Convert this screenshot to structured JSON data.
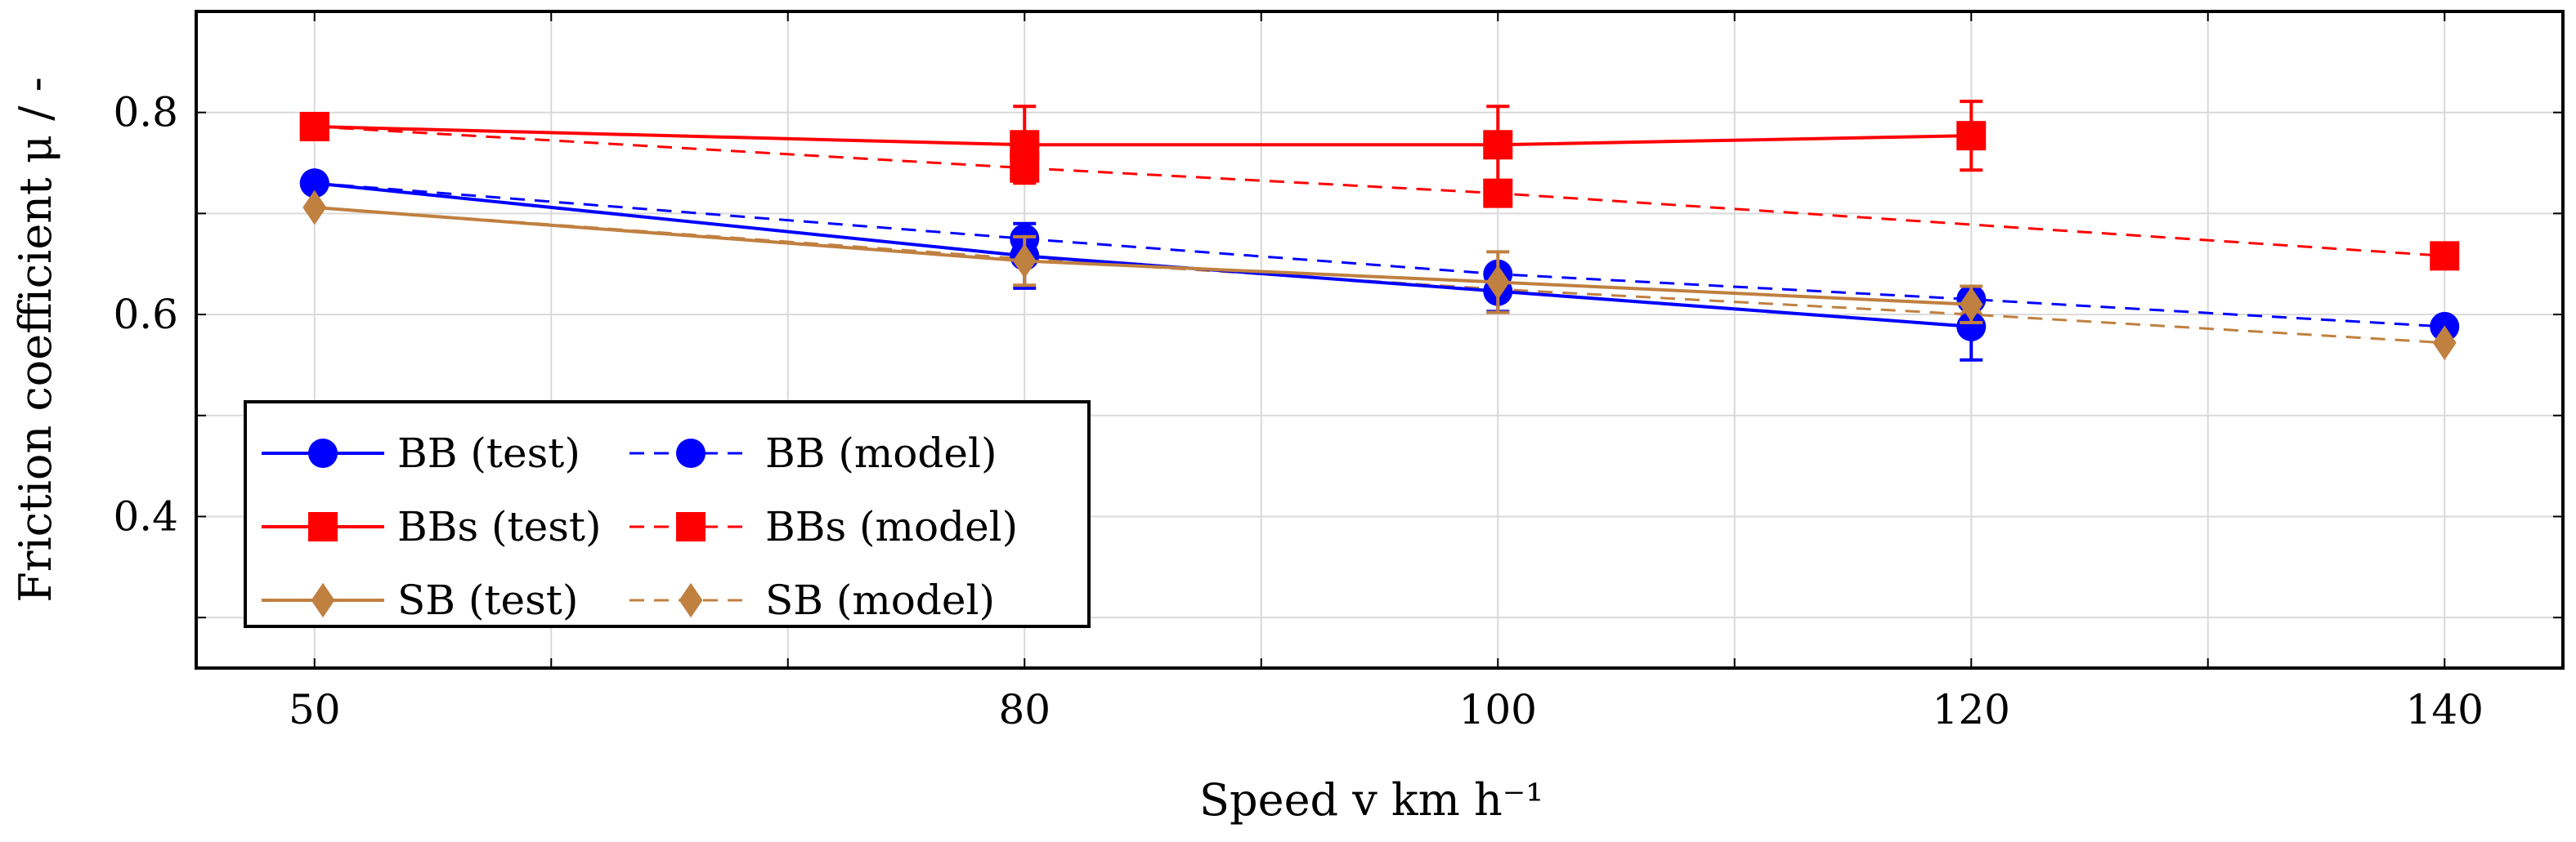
{
  "chart_data": {
    "type": "line",
    "title": "",
    "xlabel": "Speed v km h⁻¹",
    "ylabel": "Friction coefficient μ / -",
    "xlim": [
      45,
      145
    ],
    "ylim": [
      0.25,
      0.9
    ],
    "x_ticks": [
      50,
      80,
      100,
      120,
      140
    ],
    "x_tick_labels": [
      "50",
      "80",
      "100",
      "120",
      "140"
    ],
    "y_ticks": [
      0.4,
      0.6,
      0.8
    ],
    "y_tick_labels": [
      "0.4",
      "0.6",
      "0.8"
    ],
    "grid": true,
    "legend_position": "bottom-left",
    "series": [
      {
        "name": "BB (test)",
        "color": "#0000ff",
        "dash": false,
        "marker": "circle",
        "x": [
          50,
          80,
          100,
          120
        ],
        "y": [
          0.73,
          0.658,
          0.623,
          0.588
        ],
        "error": [
          0,
          0.032,
          0.02,
          0.033
        ]
      },
      {
        "name": "BB (model)",
        "color": "#0000ff",
        "dash": true,
        "marker": "circle",
        "x": [
          50,
          80,
          100,
          120,
          140
        ],
        "y": [
          0.73,
          0.675,
          0.64,
          0.615,
          0.588
        ]
      },
      {
        "name": "BBs (test)",
        "color": "#ff0000",
        "dash": false,
        "marker": "square",
        "x": [
          50,
          80,
          100,
          120
        ],
        "y": [
          0.786,
          0.768,
          0.768,
          0.777
        ],
        "error": [
          0,
          0.038,
          0.038,
          0.034
        ]
      },
      {
        "name": "BBs (model)",
        "color": "#ff0000",
        "dash": true,
        "marker": "square",
        "x": [
          50,
          80,
          100,
          140
        ],
        "y": [
          0.786,
          0.745,
          0.72,
          0.658
        ]
      },
      {
        "name": "SB (test)",
        "color": "#c08040",
        "dash": false,
        "marker": "diamond",
        "x": [
          50,
          80,
          100,
          120
        ],
        "y": [
          0.706,
          0.653,
          0.632,
          0.61
        ],
        "error": [
          0,
          0.024,
          0.03,
          0.018
        ]
      },
      {
        "name": "SB (model)",
        "color": "#c08040",
        "dash": true,
        "marker": "diamond",
        "x": [
          50,
          80,
          100,
          120,
          140
        ],
        "y": [
          0.706,
          0.655,
          0.625,
          0.6,
          0.572
        ]
      }
    ]
  }
}
